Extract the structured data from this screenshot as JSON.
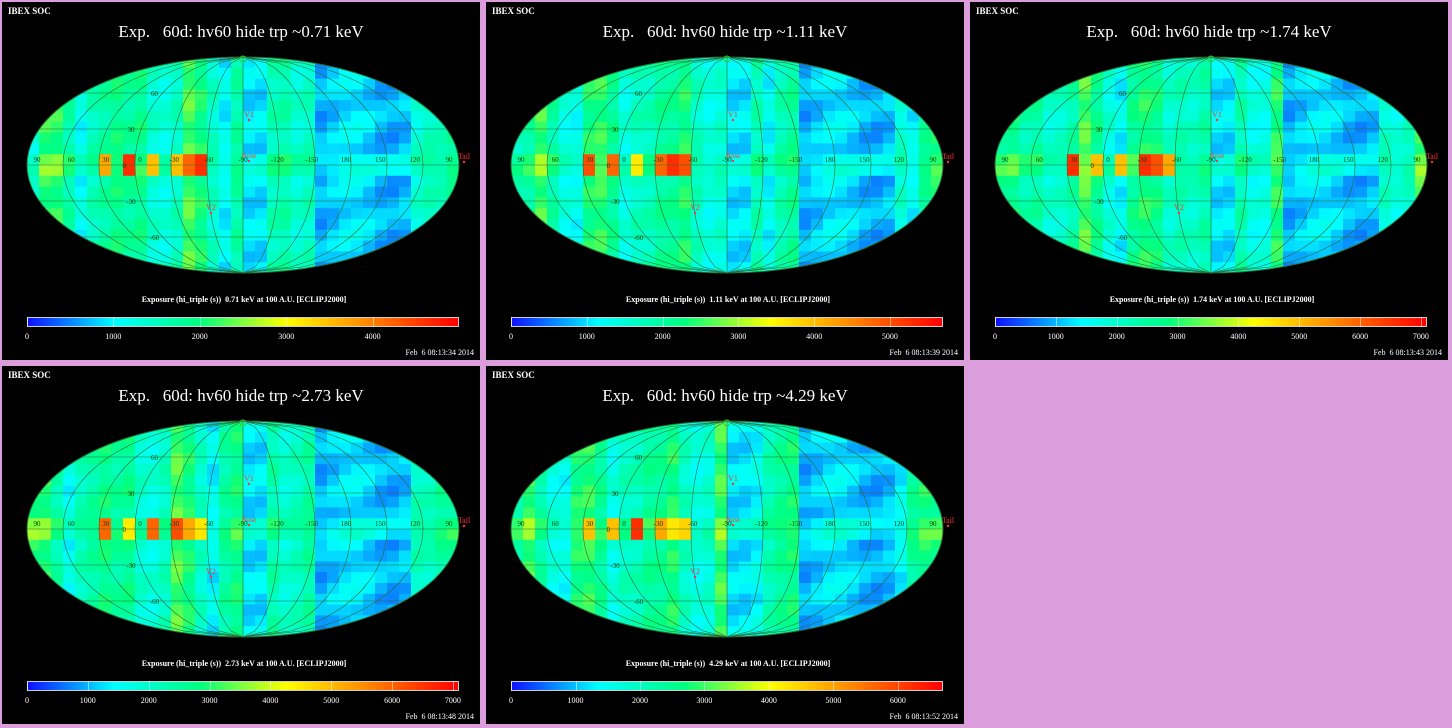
{
  "header_label": "IBEX SOC",
  "colors": {
    "background": "#dc9ddc",
    "panel": "#000000",
    "label_red": "#ff3333",
    "grid": "#2e6a2e",
    "colormap": [
      "#1010ff",
      "#00ffff",
      "#00ff80",
      "#ffff00",
      "#ff8000",
      "#ff0000"
    ]
  },
  "markers": {
    "v1": "V1",
    "v2": "V2",
    "nose": "Nose",
    "tail": "Tail"
  },
  "chart_data": [
    {
      "type": "heatmap",
      "projection": "mollweide",
      "title": "Exp.   60d: hv60 hide trp ~0.71 keV",
      "colorbar_label": "Exposure (hi_triple (s))  0.71 keV at 100 A.U. [ECLIPJ2000]",
      "colorbar_ticks": [
        "0",
        "1000",
        "2000",
        "3000",
        "4000"
      ],
      "colorbar_range": [
        0,
        5000
      ],
      "lon_ticks": [
        "90",
        "60",
        "30",
        "0",
        "-30",
        "-60",
        "-90",
        "-120",
        "-150",
        "180",
        "150",
        "120",
        "90"
      ],
      "lat_ticks": [
        "60",
        "30",
        "0",
        "-30",
        "-60"
      ],
      "timestamp": "Feb  6 08:13:34 2014"
    },
    {
      "type": "heatmap",
      "projection": "mollweide",
      "title": "Exp.   60d: hv60 hide trp ~1.11 keV",
      "colorbar_label": "Exposure (hi_triple (s))  1.11 keV at 100 A.U. [ECLIPJ2000]",
      "colorbar_ticks": [
        "0",
        "1000",
        "2000",
        "3000",
        "4000",
        "5000"
      ],
      "colorbar_range": [
        0,
        5700
      ],
      "lon_ticks": [
        "90",
        "60",
        "30",
        "0",
        "-30",
        "-60",
        "-90",
        "-120",
        "-150",
        "180",
        "150",
        "120",
        "90"
      ],
      "lat_ticks": [
        "60",
        "30",
        "0",
        "-30",
        "-60"
      ],
      "timestamp": "Feb  6 08:13:39 2014"
    },
    {
      "type": "heatmap",
      "projection": "mollweide",
      "title": "Exp.   60d: hv60 hide trp ~1.74 keV",
      "colorbar_label": "Exposure (hi_triple (s))  1.74 keV at 100 A.U. [ECLIPJ2000]",
      "colorbar_ticks": [
        "0",
        "1000",
        "2000",
        "3000",
        "4000",
        "5000",
        "6000",
        "7000"
      ],
      "colorbar_range": [
        0,
        7100
      ],
      "lon_ticks": [
        "90",
        "60",
        "30",
        "0",
        "-30",
        "-60",
        "-90",
        "-120",
        "-150",
        "180",
        "150",
        "120",
        "90"
      ],
      "lat_ticks": [
        "60",
        "30",
        "0",
        "-30",
        "-60"
      ],
      "timestamp": "Feb  6 08:13:43 2014"
    },
    {
      "type": "heatmap",
      "projection": "mollweide",
      "title": "Exp.   60d: hv60 hide trp ~2.73 keV",
      "colorbar_label": "Exposure (hi_triple (s))  2.73 keV at 100 A.U. [ECLIPJ2000]",
      "colorbar_ticks": [
        "0",
        "1000",
        "2000",
        "3000",
        "4000",
        "5000",
        "6000",
        "7000"
      ],
      "colorbar_range": [
        0,
        7100
      ],
      "lon_ticks": [
        "90",
        "60",
        "30",
        "0",
        "-30",
        "-60",
        "-90",
        "-120",
        "-150",
        "180",
        "150",
        "120",
        "90"
      ],
      "lat_ticks": [
        "60",
        "30",
        "0",
        "-30",
        "-60"
      ],
      "timestamp": "Feb  6 08:13:48 2014"
    },
    {
      "type": "heatmap",
      "projection": "mollweide",
      "title": "Exp.   60d: hv60 hide trp ~4.29 keV",
      "colorbar_label": "Exposure (hi_triple (s))  4.29 keV at 100 A.U. [ECLIPJ2000]",
      "colorbar_ticks": [
        "0",
        "1000",
        "2000",
        "3000",
        "4000",
        "5000",
        "6000"
      ],
      "colorbar_range": [
        0,
        6700
      ],
      "lon_ticks": [
        "90",
        "60",
        "30",
        "0",
        "-30",
        "-60",
        "-90",
        "-120",
        "-150",
        "180",
        "150",
        "120",
        "90"
      ],
      "lat_ticks": [
        "60",
        "30",
        "0",
        "-30",
        "-60"
      ],
      "timestamp": "Feb  6 08:13:52 2014"
    }
  ]
}
